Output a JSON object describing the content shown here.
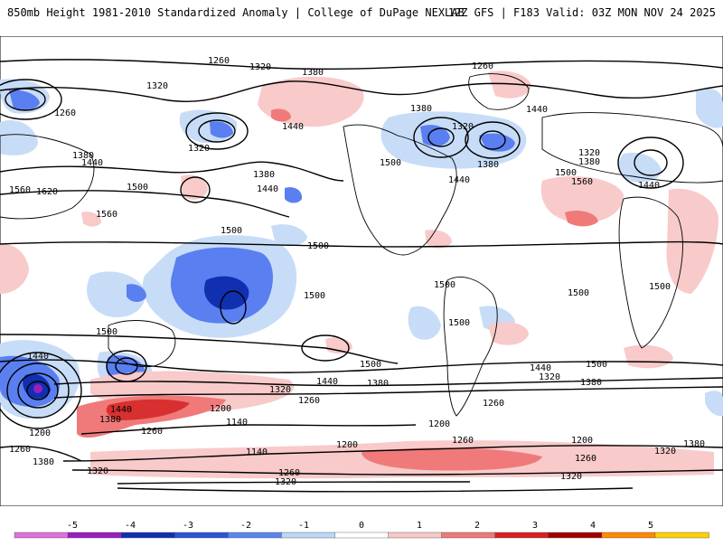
{
  "header": {
    "title": "850mb Height 1981-2010 Standardized Anomaly | College of DuPage NEXLAB",
    "run_info": "12Z GFS | F183 Valid: 03Z MON NOV 24 2025"
  },
  "contour_labels": [
    "1260",
    "1320",
    "1380",
    "1440",
    "1500",
    "1560",
    "1620",
    "1200",
    "1140"
  ],
  "colorbar": {
    "ticks": [
      "-5",
      "-4",
      "-3",
      "-2",
      "-1",
      "0",
      "1",
      "2",
      "3",
      "4",
      "5"
    ],
    "colors": [
      "#e070e0",
      "#9a1fc0",
      "#1030b0",
      "#2a55d8",
      "#5a85f0",
      "#bcd8f8",
      "#ffffff",
      "#f8c8c8",
      "#f07878",
      "#d82020",
      "#a00000",
      "#ff8800",
      "#ffd000"
    ]
  },
  "anomaly_colors": {
    "strong_neg": "#1030b0",
    "mid_neg": "#5a7ff0",
    "light_neg": "#c7dcf7",
    "light_pos": "#f8caca",
    "mid_pos": "#f07a7a",
    "strong_pos": "#d83030"
  }
}
